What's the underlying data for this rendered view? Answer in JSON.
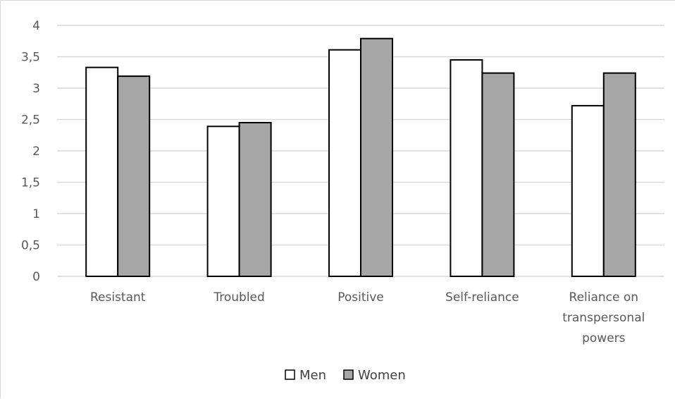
{
  "chart_data": {
    "type": "bar",
    "title": "",
    "xlabel": "",
    "ylabel": "",
    "categories": [
      [
        "Resistant"
      ],
      [
        "Troubled"
      ],
      [
        "Positive"
      ],
      [
        "Self-reliance"
      ],
      [
        "Reliance on",
        "transpersonal",
        "powers"
      ]
    ],
    "series": [
      {
        "name": "Men",
        "color": "#ffffff",
        "values": [
          3.33,
          2.39,
          3.61,
          3.45,
          2.72
        ]
      },
      {
        "name": "Women",
        "color": "#a6a6a6",
        "values": [
          3.19,
          2.45,
          3.79,
          3.24,
          3.24
        ]
      }
    ],
    "ylim": [
      0,
      4
    ],
    "yticks": [
      "0",
      "0,5",
      "1",
      "1,5",
      "2",
      "2,5",
      "3",
      "3,5",
      "4"
    ],
    "grid": true,
    "legend": "bottom-center",
    "colors": {
      "gridline": "#d9d9d9",
      "bar_outline": "#000000",
      "axis_text": "#595959"
    }
  }
}
